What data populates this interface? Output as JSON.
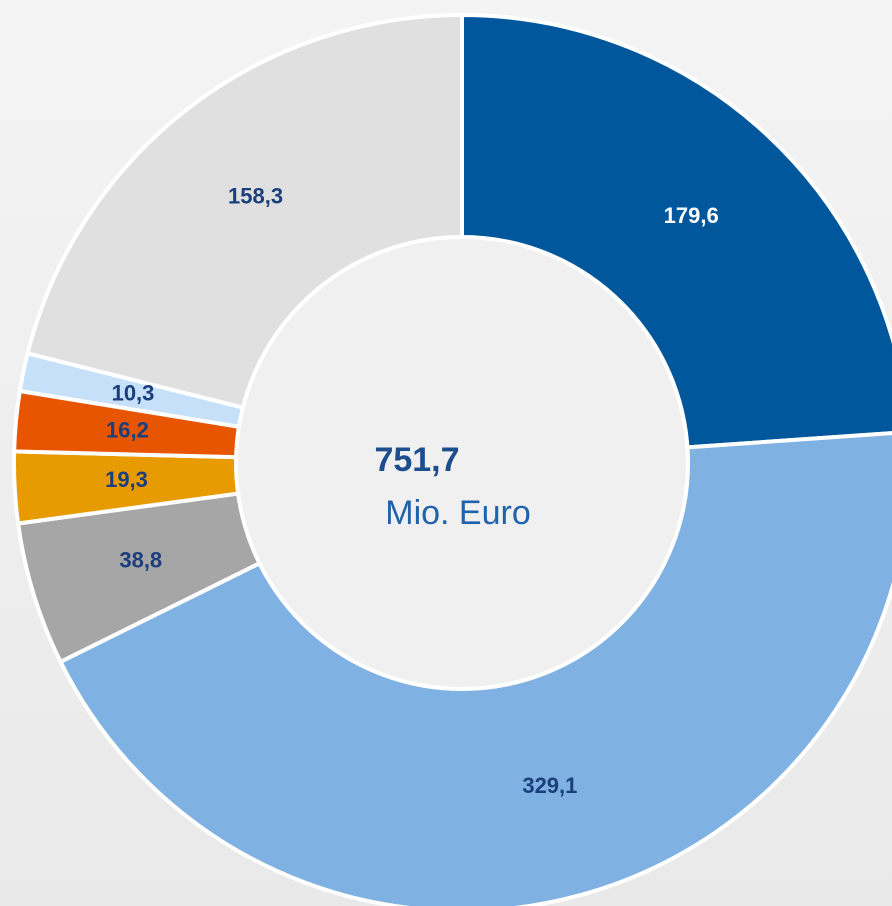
{
  "chart_data": {
    "type": "pie",
    "categories": [
      null,
      null,
      null,
      null,
      null,
      null,
      null
    ],
    "values": [
      179.6,
      329.1,
      38.8,
      19.3,
      16.2,
      10.3,
      158.3
    ],
    "value_labels": [
      "179,6",
      "329,1",
      "38,8",
      "19,3",
      "16,2",
      "10,3",
      "158,3"
    ],
    "colors": [
      "#00579b",
      "#7fb1e3",
      "#a6a6a6",
      "#e89b00",
      "#e85500",
      "#c5e0f8",
      "#e0e0e0"
    ],
    "label_colors": [
      "#ffffff",
      "#1b3f7c",
      "#1b3f7c",
      "#1b3f7c",
      "#1b3f7c",
      "#1b3f7c",
      "#1b3f7c"
    ],
    "center_label": "751,7",
    "center_unit": "Mio. Euro"
  }
}
